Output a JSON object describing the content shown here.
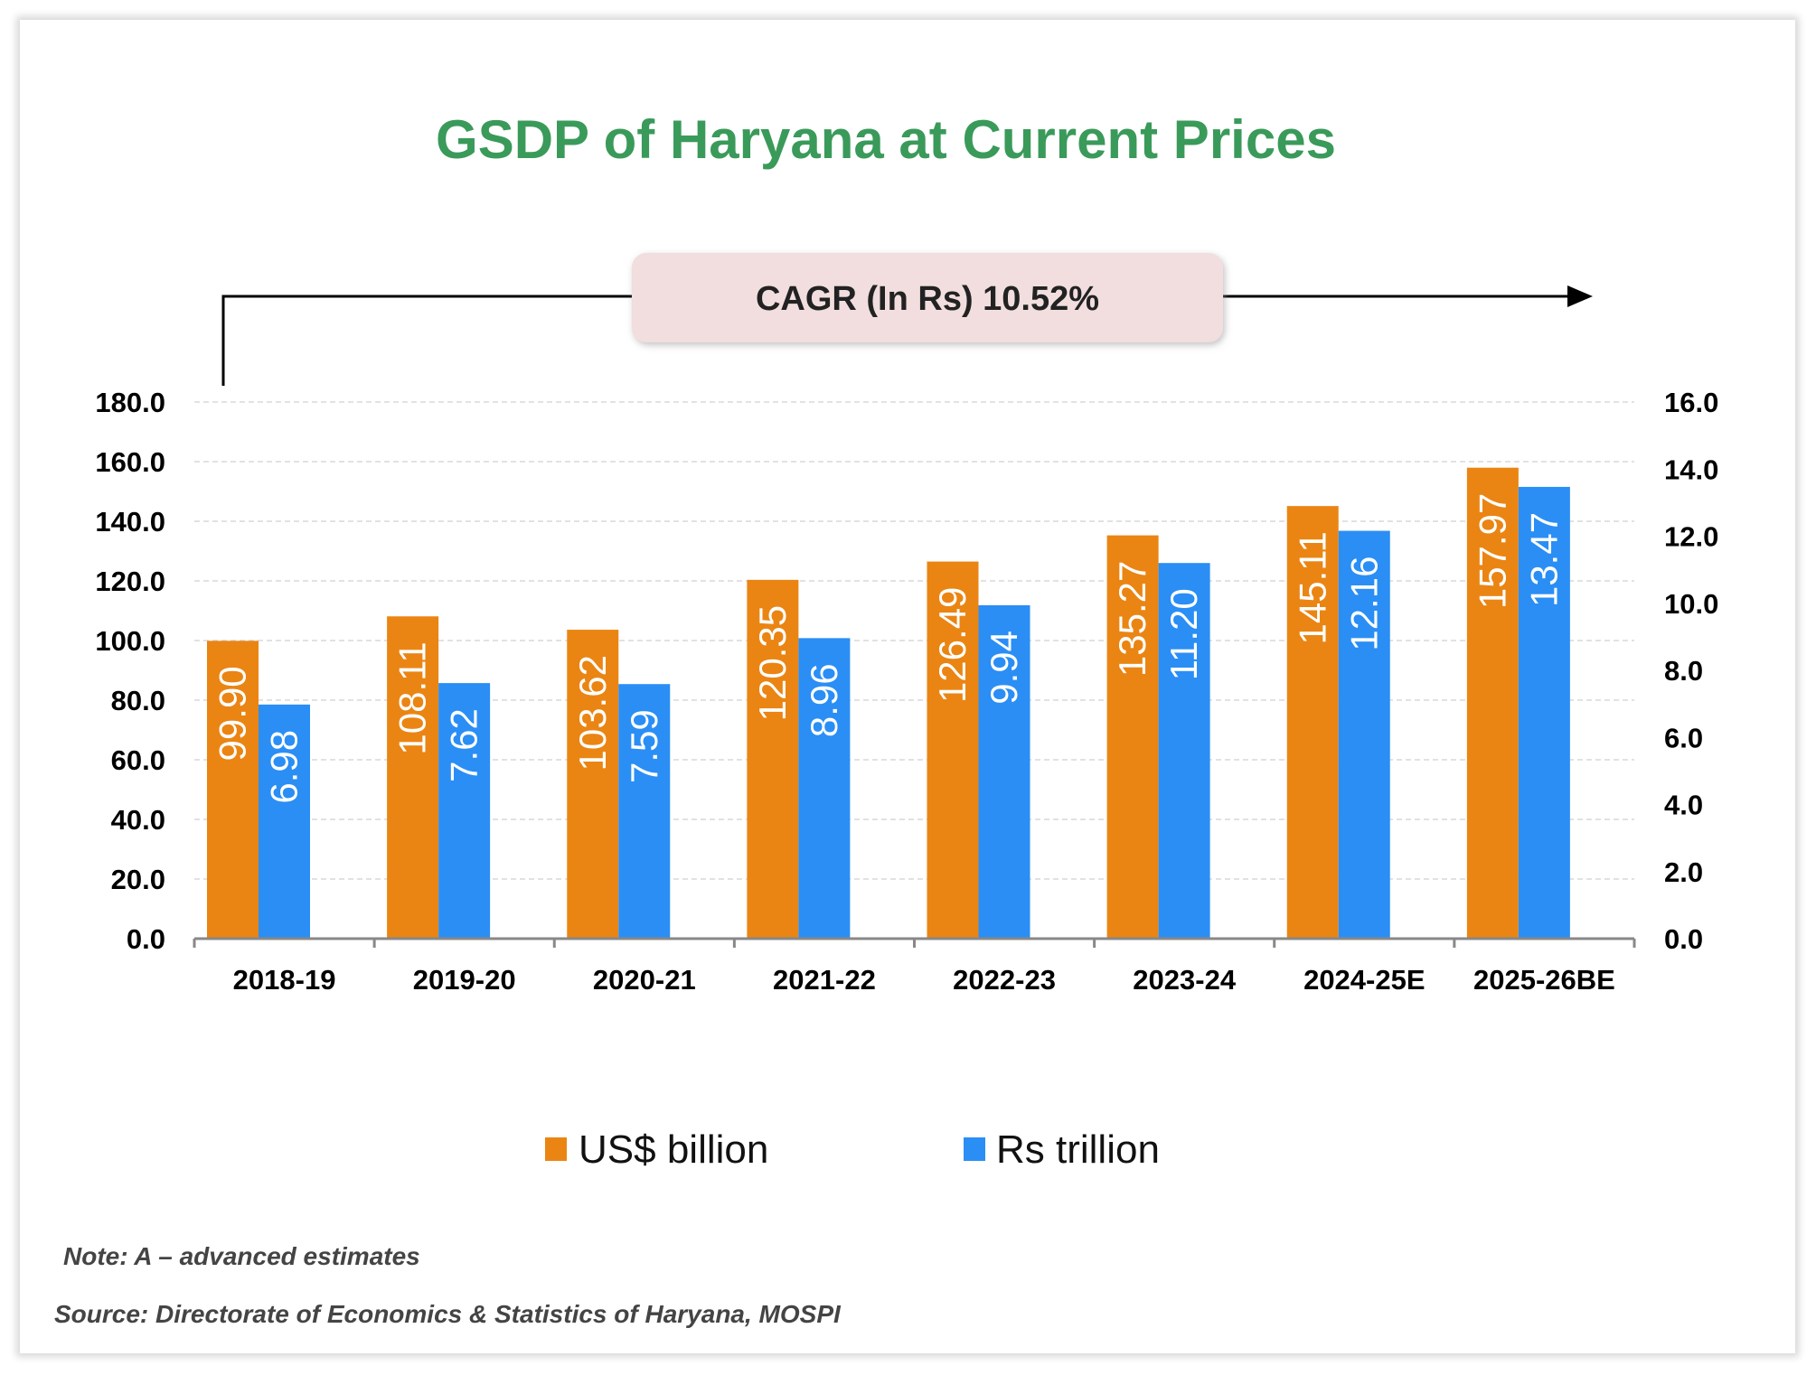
{
  "chart_data": {
    "type": "bar",
    "title": "GSDP of Haryana at Current Prices",
    "annotation": "CAGR (In Rs) 10.52%",
    "categories": [
      "2018-19",
      "2019-20",
      "2020-21",
      "2021-22",
      "2022-23",
      "2023-24",
      "2024-25E",
      "2025-26BE"
    ],
    "series": [
      {
        "name": "US$ billion",
        "axis": "left",
        "color": "#ea8513",
        "values": [
          99.9,
          108.11,
          103.62,
          120.35,
          126.49,
          135.27,
          145.11,
          157.97
        ],
        "labels": [
          "99.90",
          "108.11",
          "103.62",
          "120.35",
          "126.49",
          "135.27",
          "145.11",
          "157.97"
        ]
      },
      {
        "name": "Rs trillion",
        "axis": "right",
        "color": "#2a8ef5",
        "values": [
          6.98,
          7.62,
          7.59,
          8.96,
          9.94,
          11.2,
          12.16,
          13.47
        ],
        "labels": [
          "6.98",
          "7.62",
          "7.59",
          "8.96",
          "9.94",
          "11.20",
          "12.16",
          "13.47"
        ]
      }
    ],
    "y_left": {
      "range": [
        0,
        180
      ],
      "ticks": [
        "0.0",
        "20.0",
        "40.0",
        "60.0",
        "80.0",
        "100.0",
        "120.0",
        "140.0",
        "160.0",
        "180.0"
      ]
    },
    "y_right": {
      "range": [
        0,
        16
      ],
      "ticks": [
        "0.0",
        "2.0",
        "4.0",
        "6.0",
        "8.0",
        "10.0",
        "12.0",
        "14.0",
        "16.0"
      ]
    },
    "grid": true,
    "legend": "bottom",
    "title_color": "#3a9a5a",
    "annotation_fill": "#f2dede"
  },
  "footer": {
    "note": "Note: A – advanced estimates",
    "source": "Source: Directorate of Economics & Statistics of Haryana, MOSPI"
  }
}
